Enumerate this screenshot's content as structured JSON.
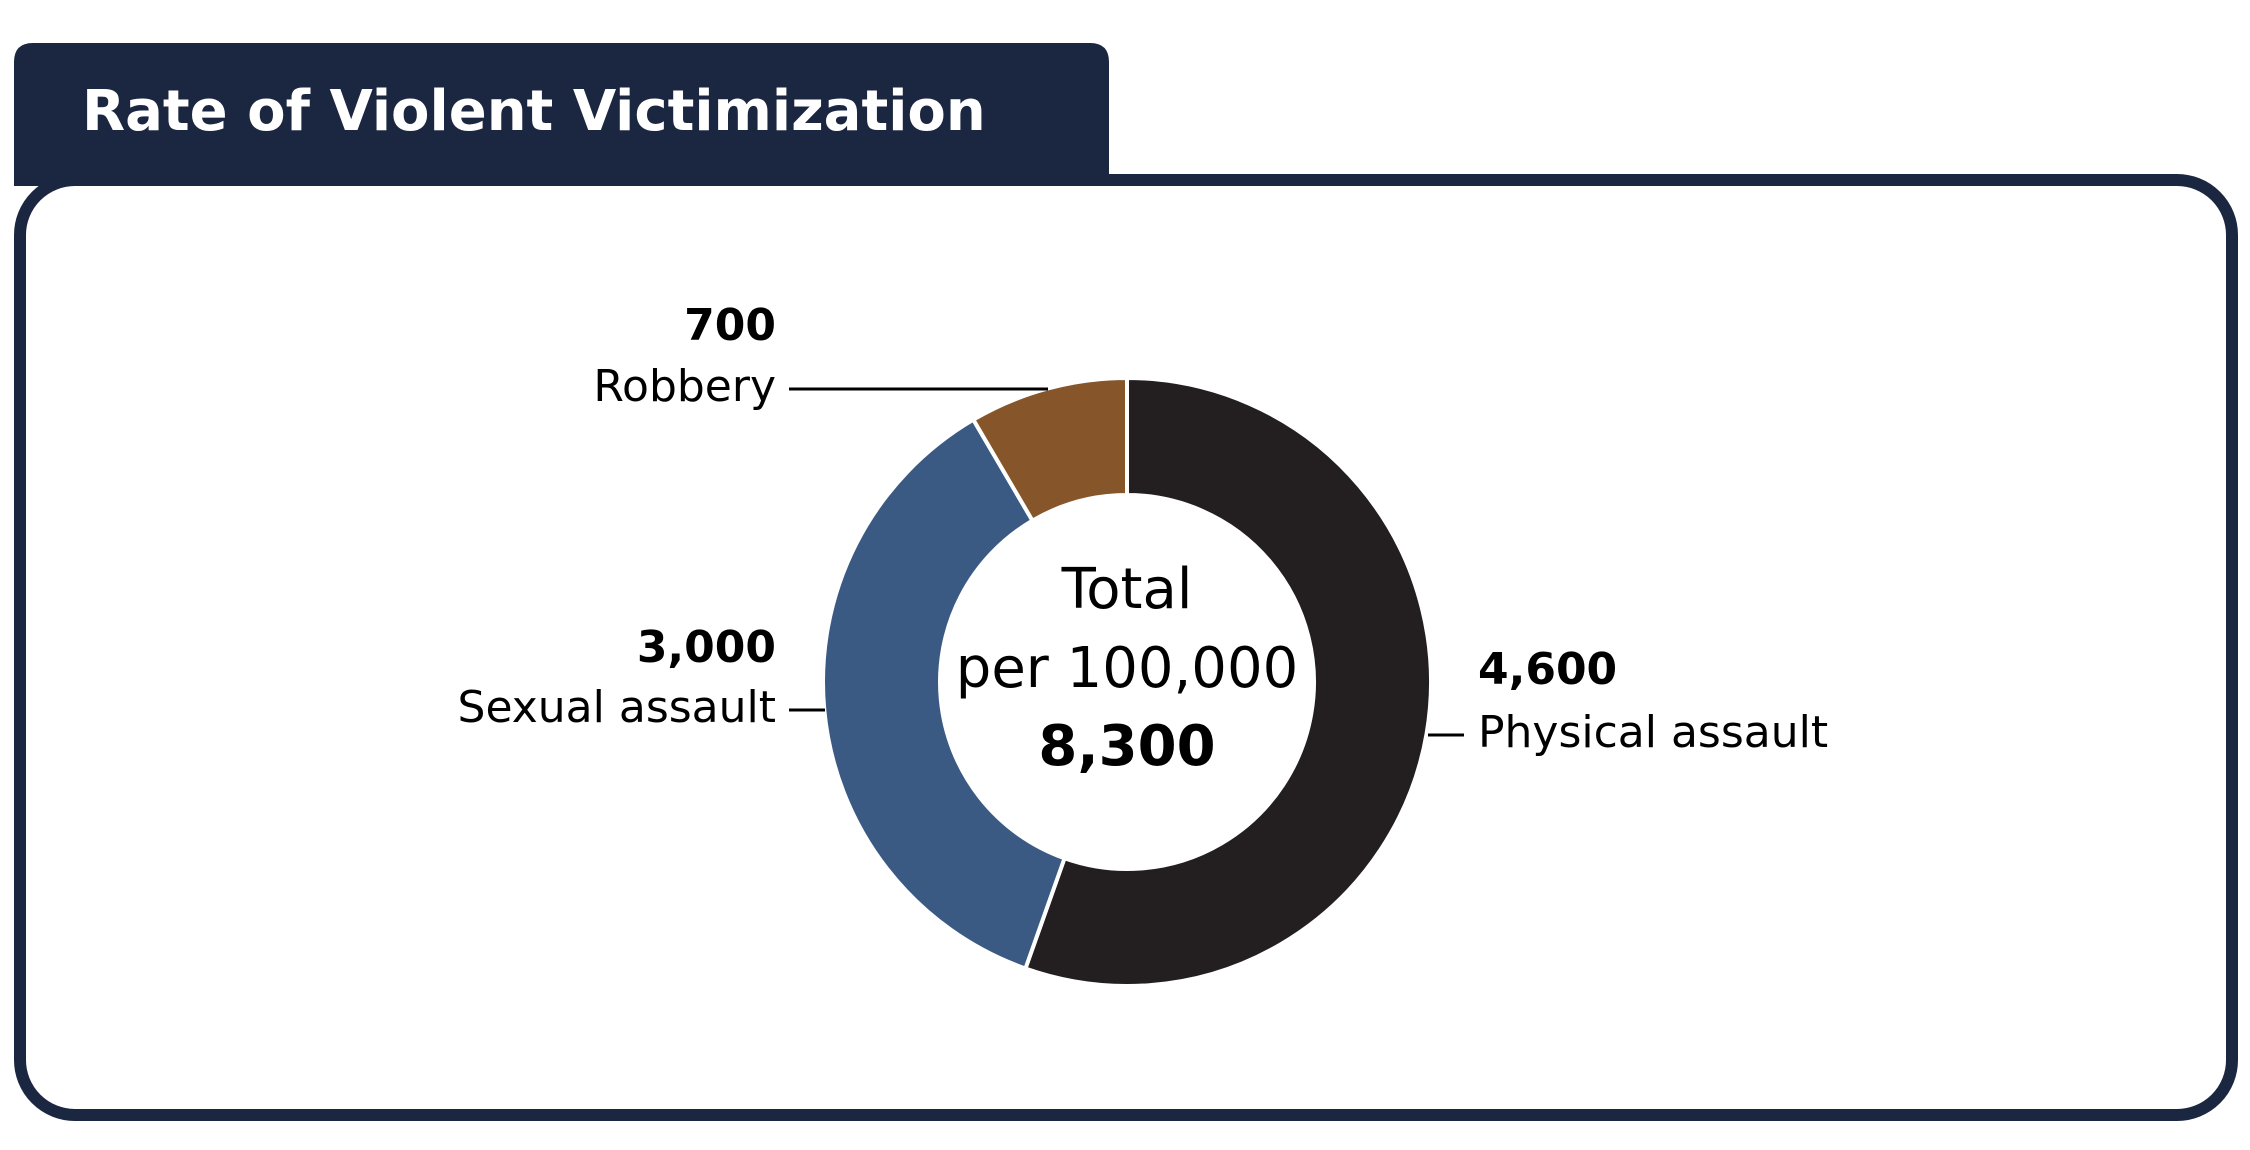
{
  "chart_data": {
    "type": "donut",
    "title": "Rate of Violent Victimization",
    "center_text": [
      "Total",
      "per 100,000"
    ],
    "total": 8300,
    "total_label": "8,300",
    "categories": [
      "Physical assault",
      "Sexual assault",
      "Robbery"
    ],
    "values": [
      4600,
      3000,
      700
    ],
    "value_labels": [
      "4,600",
      "3,000",
      "700"
    ],
    "colors": [
      "#231f20",
      "#3a5a84",
      "#87552a"
    ]
  }
}
